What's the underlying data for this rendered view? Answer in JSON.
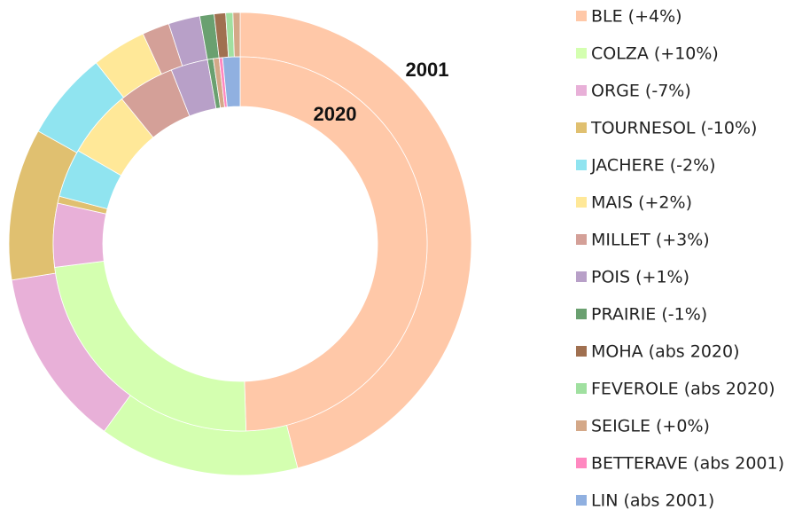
{
  "chart_data": {
    "type": "donut",
    "categories": [
      "BLE (+4%)",
      "COLZA (+10%)",
      "ORGE (-7%)",
      "TOURNESOL (-10%)",
      "JACHERE (-2%)",
      "MAIS (+2%)",
      "MILLET (+3%)",
      "POIS (+1%)",
      "PRAIRIE (-1%)",
      "MOHA (abs 2020)",
      "FEVEROLE (abs 2020)",
      "SEIGLE (+0%)",
      "BETTERAVE (abs 2001)",
      "LIN (abs 2001)"
    ],
    "colors": [
      "#ffc8a8",
      "#d4ffb0",
      "#e8b0d8",
      "#e0c070",
      "#90e4f0",
      "#ffe898",
      "#d4a098",
      "#b8a0c8",
      "#6aa070",
      "#a07050",
      "#a0e0a0",
      "#d4a888",
      "#ff88c0",
      "#90b0e0"
    ],
    "series": [
      {
        "name": "2001",
        "values": [
          46,
          14,
          12.5,
          10.6,
          6.2,
          3.8,
          1.9,
          2.2,
          1,
          0.8,
          0.5,
          0.5,
          0,
          0
        ]
      },
      {
        "name": "2020",
        "values": [
          49.5,
          23.5,
          5.5,
          0.6,
          4.2,
          5.8,
          4.9,
          3.2,
          0.5,
          0,
          0,
          0.5,
          0.3,
          1.5
        ]
      }
    ],
    "legend": "right"
  }
}
